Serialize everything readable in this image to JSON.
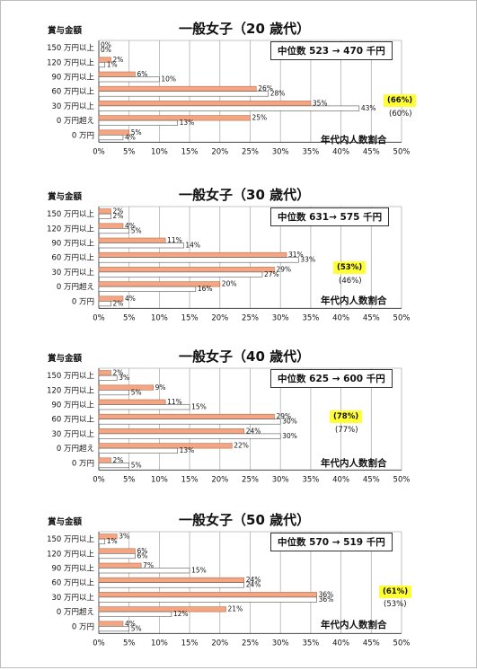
{
  "panels": [
    {
      "title": "一般女子（20 歳代）",
      "category_header": "賞与金額",
      "median_text": "中位数 523 → 470 千円",
      "highlight_text": "(66%)",
      "previous_text": "(60%)",
      "footer_text": "年代内人数割合"
    },
    {
      "title": "一般女子（30 歳代）",
      "category_header": "賞与金額",
      "median_text": "中位数 631→ 575 千円",
      "highlight_text": "(53%)",
      "previous_text": "(46%)",
      "footer_text": "年代内人数割合"
    },
    {
      "title": "一般女子（40 歳代）",
      "category_header": "賞与金額",
      "median_text": "中位数 625 → 600 千円",
      "highlight_text": "(78%)",
      "previous_text": "(77%)",
      "footer_text": "年代内人数割合"
    },
    {
      "title": "一般女子（50 歳代）",
      "category_header": "賞与金額",
      "median_text": "中位数 570 → 519 千円",
      "highlight_text": "(61%)",
      "previous_text": "(53%)",
      "footer_text": "年代内人数割合"
    }
  ],
  "colors": {
    "current": "#f4a582",
    "current_stroke": "#b8704c",
    "previous": "#ffffff",
    "previous_stroke": "#555555",
    "highlight": "#ffff33"
  },
  "chart_data": [
    {
      "type": "bar",
      "orientation": "horizontal",
      "title": "一般女子（20 歳代）",
      "categories": [
        "150 万円以上",
        "120 万円以上",
        "90 万円以上",
        "60 万円以上",
        "30 万円以上",
        "0 万円超え",
        "0 万円"
      ],
      "series": [
        {
          "values": [
            0,
            2,
            6,
            26,
            35,
            25,
            5
          ]
        },
        {
          "values": [
            0,
            1,
            10,
            28,
            43,
            13,
            4
          ]
        }
      ],
      "ticks": [
        "0%",
        "5%",
        "10%",
        "15%",
        "20%",
        "25%",
        "30%",
        "35%",
        "40%",
        "45%",
        "50%"
      ],
      "xlim": [
        0,
        50
      ],
      "grid": true
    },
    {
      "type": "bar",
      "orientation": "horizontal",
      "title": "一般女子（30 歳代）",
      "categories": [
        "150 万円以上",
        "120 万円以上",
        "90 万円以上",
        "60 万円以上",
        "30 万円以上",
        "0 万円超え",
        "0 万円"
      ],
      "series": [
        {
          "values": [
            2,
            4,
            11,
            31,
            29,
            20,
            4
          ]
        },
        {
          "values": [
            2,
            5,
            14,
            33,
            27,
            16,
            2
          ]
        }
      ],
      "ticks": [
        "0%",
        "5%",
        "10%",
        "15%",
        "20%",
        "25%",
        "30%",
        "35%",
        "40%",
        "45%",
        "50%"
      ],
      "xlim": [
        0,
        50
      ],
      "grid": true
    },
    {
      "type": "bar",
      "orientation": "horizontal",
      "title": "一般女子（40 歳代）",
      "categories": [
        "150 万円以上",
        "120 万円以上",
        "90 万円以上",
        "60 万円以上",
        "30 万円以上",
        "0 万円超え",
        "0 万円"
      ],
      "series": [
        {
          "values": [
            2,
            9,
            11,
            29,
            24,
            22,
            2
          ]
        },
        {
          "values": [
            3,
            5,
            15,
            30,
            30,
            13,
            5
          ]
        }
      ],
      "ticks": [
        "0%",
        "5%",
        "10%",
        "15%",
        "20%",
        "25%",
        "30%",
        "35%",
        "40%",
        "45%",
        "50%"
      ],
      "xlim": [
        0,
        50
      ],
      "grid": true
    },
    {
      "type": "bar",
      "orientation": "horizontal",
      "title": "一般女子（50 歳代）",
      "categories": [
        "150 万円以上",
        "120 万円以上",
        "90 万円以上",
        "60 万円以上",
        "30 万円以上",
        "0 万円超え",
        "0 万円"
      ],
      "series": [
        {
          "values": [
            3,
            6,
            7,
            24,
            36,
            21,
            4
          ]
        },
        {
          "values": [
            1,
            6,
            15,
            24,
            36,
            12,
            5
          ]
        }
      ],
      "ticks": [
        "0%",
        "5%",
        "10%",
        "15%",
        "20%",
        "25%",
        "30%",
        "35%",
        "40%",
        "45%",
        "50%"
      ],
      "xlim": [
        0,
        50
      ],
      "grid": true
    }
  ]
}
